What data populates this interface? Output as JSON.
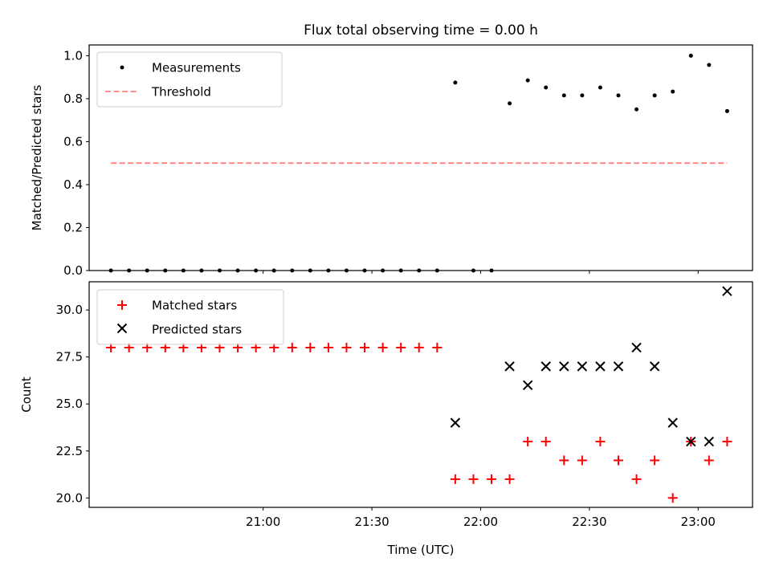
{
  "title": "Flux total observing time = 0.00 h",
  "colors": {
    "measurements": "#000000",
    "threshold": "#ff7f7f",
    "matched": "#ff0000",
    "predicted": "#000000"
  },
  "chart_data": [
    {
      "type": "scatter",
      "ylabel": "Matched/Predicted stars",
      "ylim": [
        0,
        1.05
      ],
      "yticks": [
        "0.0",
        "0.2",
        "0.4",
        "0.6",
        "0.8",
        "1.0"
      ],
      "xlim": [
        "20:12",
        "23:15"
      ],
      "legend": "upper-left",
      "series": [
        {
          "name": "Measurements",
          "marker": "dot",
          "points": [
            [
              "20:18",
              0.0
            ],
            [
              "20:23",
              0.0
            ],
            [
              "20:28",
              0.0
            ],
            [
              "20:33",
              0.0
            ],
            [
              "20:38",
              0.0
            ],
            [
              "20:43",
              0.0
            ],
            [
              "20:48",
              0.0
            ],
            [
              "20:53",
              0.0
            ],
            [
              "20:58",
              0.0
            ],
            [
              "21:03",
              0.0
            ],
            [
              "21:08",
              0.0
            ],
            [
              "21:13",
              0.0
            ],
            [
              "21:18",
              0.0
            ],
            [
              "21:23",
              0.0
            ],
            [
              "21:28",
              0.0
            ],
            [
              "21:33",
              0.0
            ],
            [
              "21:38",
              0.0
            ],
            [
              "21:43",
              0.0
            ],
            [
              "21:48",
              0.0
            ],
            [
              "21:53",
              0.875
            ],
            [
              "21:58",
              0.0
            ],
            [
              "22:03",
              0.0
            ],
            [
              "22:08",
              0.778
            ],
            [
              "22:13",
              0.885
            ],
            [
              "22:18",
              0.852
            ],
            [
              "22:23",
              0.815
            ],
            [
              "22:28",
              0.815
            ],
            [
              "22:33",
              0.852
            ],
            [
              "22:38",
              0.815
            ],
            [
              "22:43",
              0.75
            ],
            [
              "22:48",
              0.815
            ],
            [
              "22:53",
              0.833
            ],
            [
              "22:58",
              1.0
            ],
            [
              "23:03",
              0.957
            ],
            [
              "23:08",
              0.742
            ]
          ]
        },
        {
          "name": "Threshold",
          "style": "dashed",
          "points": [
            [
              "20:18",
              0.5
            ],
            [
              "23:08",
              0.5
            ]
          ]
        }
      ]
    },
    {
      "type": "scatter",
      "xlabel": "Time (UTC)",
      "ylabel": "Count",
      "ylim": [
        19.5,
        31.5
      ],
      "yticks": [
        "20.0",
        "22.5",
        "25.0",
        "27.5",
        "30.0"
      ],
      "xlim": [
        "20:12",
        "23:15"
      ],
      "xticks": [
        "21:00",
        "21:30",
        "22:00",
        "22:30",
        "23:00"
      ],
      "legend": "upper-left",
      "series": [
        {
          "name": "Matched stars",
          "marker": "plus",
          "points": [
            [
              "20:18",
              28
            ],
            [
              "20:23",
              28
            ],
            [
              "20:28",
              28
            ],
            [
              "20:33",
              28
            ],
            [
              "20:38",
              28
            ],
            [
              "20:43",
              28
            ],
            [
              "20:48",
              28
            ],
            [
              "20:53",
              28
            ],
            [
              "20:58",
              28
            ],
            [
              "21:03",
              28
            ],
            [
              "21:08",
              28
            ],
            [
              "21:13",
              28
            ],
            [
              "21:18",
              28
            ],
            [
              "21:23",
              28
            ],
            [
              "21:28",
              28
            ],
            [
              "21:33",
              28
            ],
            [
              "21:38",
              28
            ],
            [
              "21:43",
              28
            ],
            [
              "21:48",
              28
            ],
            [
              "21:53",
              21
            ],
            [
              "21:58",
              21
            ],
            [
              "22:03",
              21
            ],
            [
              "22:08",
              21
            ],
            [
              "22:13",
              23
            ],
            [
              "22:18",
              23
            ],
            [
              "22:23",
              22
            ],
            [
              "22:28",
              22
            ],
            [
              "22:33",
              23
            ],
            [
              "22:38",
              22
            ],
            [
              "22:43",
              21
            ],
            [
              "22:48",
              22
            ],
            [
              "22:53",
              20
            ],
            [
              "22:58",
              23
            ],
            [
              "23:03",
              22
            ],
            [
              "23:08",
              23
            ]
          ]
        },
        {
          "name": "Predicted stars",
          "marker": "x",
          "points": [
            [
              "21:53",
              24
            ],
            [
              "22:08",
              27
            ],
            [
              "22:13",
              26
            ],
            [
              "22:18",
              27
            ],
            [
              "22:23",
              27
            ],
            [
              "22:28",
              27
            ],
            [
              "22:33",
              27
            ],
            [
              "22:38",
              27
            ],
            [
              "22:43",
              28
            ],
            [
              "22:48",
              27
            ],
            [
              "22:53",
              24
            ],
            [
              "22:58",
              23
            ],
            [
              "23:03",
              23
            ],
            [
              "23:08",
              31
            ]
          ]
        }
      ]
    }
  ]
}
